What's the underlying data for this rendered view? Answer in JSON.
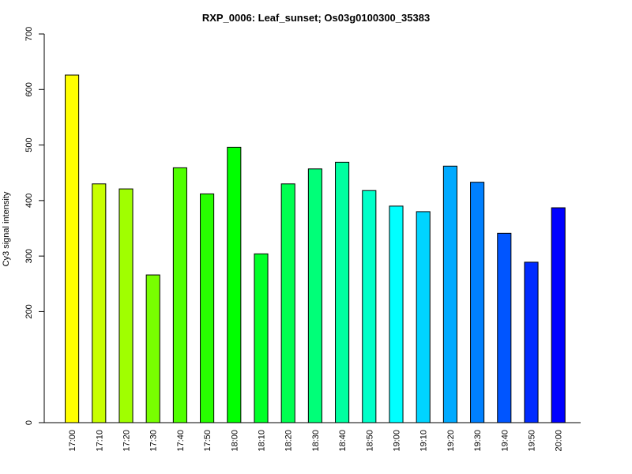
{
  "chart_data": {
    "type": "bar",
    "title": "RXP_0006: Leaf_sunset; Os03g0100300_35383",
    "xlabel": "",
    "ylabel": "Cy3 signal intensity",
    "ylim": [
      0,
      700
    ],
    "y_ticks": [
      0,
      200,
      300,
      400,
      500,
      600,
      700
    ],
    "categories": [
      "17:00",
      "17:10",
      "17:20",
      "17:30",
      "17:40",
      "17:50",
      "18:00",
      "18:10",
      "18:20",
      "18:30",
      "18:40",
      "18:50",
      "19:00",
      "19:10",
      "19:20",
      "19:30",
      "19:40",
      "19:50",
      "20:00"
    ],
    "values": [
      626,
      430,
      421,
      266,
      459,
      412,
      496,
      304,
      430,
      457,
      469,
      418,
      390,
      380,
      462,
      433,
      341,
      289,
      387
    ],
    "colors": [
      "#FFFF00",
      "#C8FF00",
      "#A0FF00",
      "#78FF00",
      "#50FF00",
      "#28FF00",
      "#00FF00",
      "#00FF28",
      "#00FF50",
      "#00FF78",
      "#00FFA0",
      "#00FFC8",
      "#00FFFF",
      "#00D4FF",
      "#00AAFF",
      "#0080FF",
      "#0055FF",
      "#002BFF",
      "#0000FF"
    ],
    "grid": false,
    "legend": "none"
  }
}
